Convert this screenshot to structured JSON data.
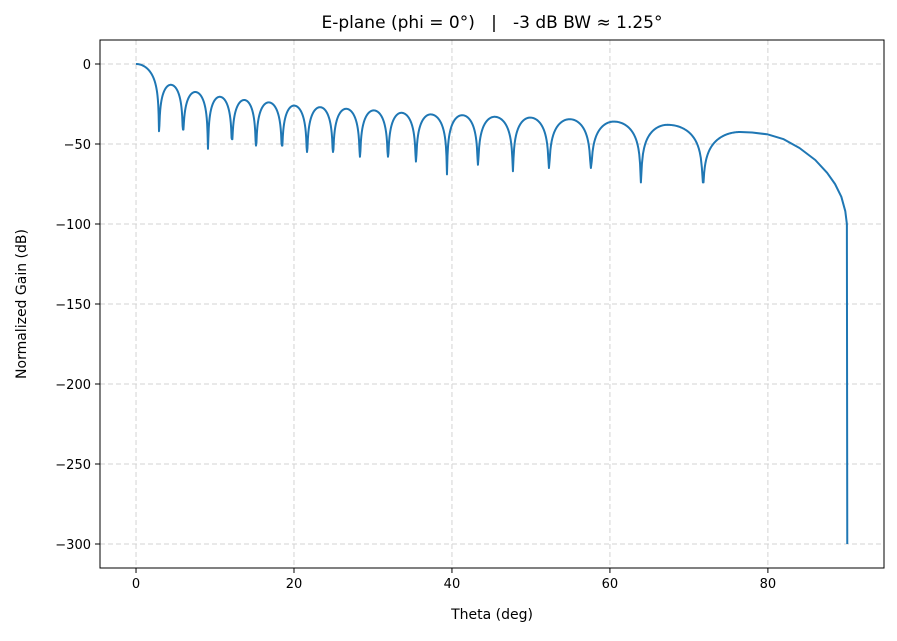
{
  "chart_data": {
    "type": "line",
    "title": "E-plane (phi = 0°)   |   -3 dB BW ≈ 1.25°",
    "xlabel": "Theta (deg)",
    "ylabel": "Normalized Gain (dB)",
    "xlim": [
      -4.56,
      94.7
    ],
    "ylim": [
      -315,
      15
    ],
    "xticks": [
      0,
      20,
      40,
      60,
      80
    ],
    "yticks": [
      0,
      -50,
      -100,
      -150,
      -200,
      -250,
      -300
    ],
    "ytick_labels": [
      "0",
      "−50",
      "−100",
      "−150",
      "−200",
      "−250",
      "−300"
    ],
    "grid": true,
    "line_color": "#1f77b4",
    "main_lobe": {
      "peak_theta": 0,
      "peak_db": 0,
      "first_null_theta": 2.91,
      "first_null_db": -42
    },
    "side_lobes": [
      {
        "null_start": 2.91,
        "null_start_db": -42,
        "peak_theta": 4.4,
        "peak_db": -13,
        "null_end": 5.95,
        "null_end_db": -41
      },
      {
        "null_start": 5.95,
        "null_start_db": -41,
        "peak_theta": 7.5,
        "peak_db": -17.5,
        "null_end": 9.11,
        "null_end_db": -53
      },
      {
        "null_start": 9.11,
        "null_start_db": -53,
        "peak_theta": 10.6,
        "peak_db": -20.5,
        "null_end": 12.15,
        "null_end_db": -47
      },
      {
        "null_start": 12.15,
        "null_start_db": -47,
        "peak_theta": 13.7,
        "peak_db": -22.5,
        "null_end": 15.19,
        "null_end_db": -51
      },
      {
        "null_start": 15.19,
        "null_start_db": -51,
        "peak_theta": 16.8,
        "peak_db": -24,
        "null_end": 18.48,
        "null_end_db": -51
      },
      {
        "null_start": 18.48,
        "null_start_db": -51,
        "peak_theta": 20.0,
        "peak_db": -26,
        "null_end": 21.65,
        "null_end_db": -55
      },
      {
        "null_start": 21.65,
        "null_start_db": -55,
        "peak_theta": 23.3,
        "peak_db": -27,
        "null_end": 24.94,
        "null_end_db": -55
      },
      {
        "null_start": 24.94,
        "null_start_db": -55,
        "peak_theta": 26.6,
        "peak_db": -28,
        "null_end": 28.35,
        "null_end_db": -58
      },
      {
        "null_start": 28.35,
        "null_start_db": -58,
        "peak_theta": 30.1,
        "peak_db": -29,
        "null_end": 31.9,
        "null_end_db": -58
      },
      {
        "null_start": 31.9,
        "null_start_db": -58,
        "peak_theta": 33.6,
        "peak_db": -30.5,
        "null_end": 35.44,
        "null_end_db": -61
      },
      {
        "null_start": 35.44,
        "null_start_db": -61,
        "peak_theta": 37.3,
        "peak_db": -31.5,
        "null_end": 39.37,
        "null_end_db": -69
      },
      {
        "null_start": 39.37,
        "null_start_db": -69,
        "peak_theta": 41.3,
        "peak_db": -32,
        "null_end": 43.29,
        "null_end_db": -63
      },
      {
        "null_start": 43.29,
        "null_start_db": -63,
        "peak_theta": 45.4,
        "peak_db": -33,
        "null_end": 47.72,
        "null_end_db": -67
      },
      {
        "null_start": 47.72,
        "null_start_db": -67,
        "peak_theta": 49.9,
        "peak_db": -33.5,
        "null_end": 52.28,
        "null_end_db": -65
      },
      {
        "null_start": 52.28,
        "null_start_db": -65,
        "peak_theta": 54.9,
        "peak_db": -34.5,
        "null_end": 57.59,
        "null_end_db": -65
      },
      {
        "null_start": 57.59,
        "null_start_db": -65,
        "peak_theta": 60.5,
        "peak_db": -36,
        "null_end": 63.92,
        "null_end_db": -74
      },
      {
        "null_start": 63.92,
        "null_start_db": -74,
        "peak_theta": 67.3,
        "peak_db": -38,
        "null_end": 71.77,
        "null_end_db": -74
      }
    ],
    "last_lobe": {
      "null_start": 71.77,
      "null_start_db": -74,
      "peak_theta": 76.5,
      "peak_db": -42.5,
      "tail": [
        [
          76.5,
          -42.5
        ],
        [
          78,
          -42.8
        ],
        [
          80,
          -44
        ],
        [
          82,
          -47
        ],
        [
          84,
          -52.5
        ],
        [
          86,
          -60
        ],
        [
          87.5,
          -68
        ],
        [
          88.5,
          -75
        ],
        [
          89.3,
          -83
        ],
        [
          89.8,
          -92
        ],
        [
          90,
          -100
        ],
        [
          90.05,
          -300
        ]
      ]
    }
  }
}
